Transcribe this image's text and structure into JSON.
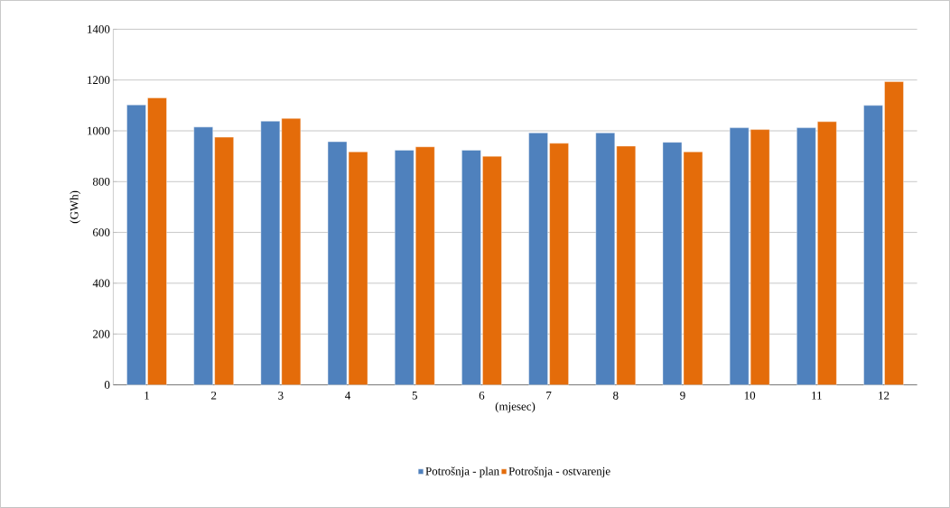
{
  "chart_data": {
    "type": "bar",
    "xlabel": "(mjesec)",
    "ylabel": "(GWh)",
    "categories": [
      "1",
      "2",
      "3",
      "4",
      "5",
      "6",
      "7",
      "8",
      "9",
      "10",
      "11",
      "12"
    ],
    "series": [
      {
        "name": "Potrošnja - plan",
        "color": "#4f81bd",
        "values": [
          1102,
          1015,
          1038,
          957,
          924,
          924,
          992,
          992,
          955,
          1012,
          1012,
          1100
        ]
      },
      {
        "name": "Potrošnja - ostvarenje",
        "color": "#e46c0a",
        "values": [
          1130,
          975,
          1049,
          917,
          937,
          900,
          951,
          940,
          917,
          1005,
          1036,
          1194
        ]
      }
    ],
    "ylim": [
      0,
      1400
    ],
    "yticks": [
      0,
      200,
      400,
      600,
      800,
      1000,
      1200,
      1400
    ],
    "grid": "y",
    "legend": "bottom"
  }
}
